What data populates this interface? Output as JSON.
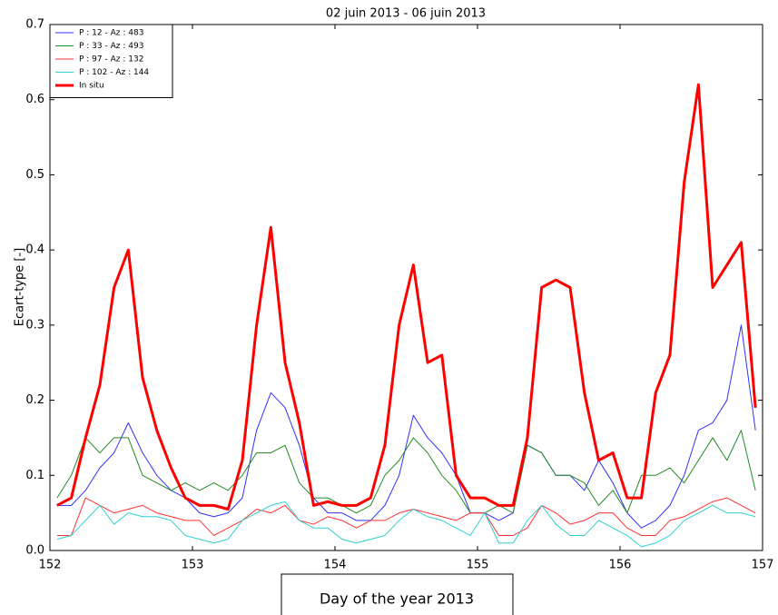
{
  "chart_data": {
    "type": "line",
    "title": "02 juin 2013 - 06 juin 2013",
    "x_label": "Day of the year 2013",
    "y_label": "Ecart-type [-]",
    "x": [
      152.05,
      152.15,
      152.25,
      152.35,
      152.45,
      152.55,
      152.65,
      152.75,
      152.85,
      152.95,
      153.05,
      153.15,
      153.25,
      153.35,
      153.45,
      153.55,
      153.65,
      153.75,
      153.85,
      153.95,
      154.05,
      154.15,
      154.25,
      154.35,
      154.45,
      154.55,
      154.65,
      154.75,
      154.85,
      154.95,
      155.05,
      155.15,
      155.25,
      155.35,
      155.45,
      155.55,
      155.65,
      155.75,
      155.85,
      155.95,
      156.05,
      156.15,
      156.25,
      156.35,
      156.45,
      156.55,
      156.65,
      156.75,
      156.85,
      156.95
    ],
    "xlim": [
      152,
      157
    ],
    "xticks": [
      152,
      153,
      154,
      155,
      156,
      157
    ],
    "ylim": [
      0,
      0.7
    ],
    "yticks": [
      {
        "value": 0,
        "label": "0.0"
      },
      0.1,
      0.2,
      0.3,
      0.4,
      0.5,
      0.6,
      0.7
    ],
    "legend": "upper left",
    "series": [
      {
        "name": "P : 12 - Az : 483",
        "color": "#3030ff",
        "width": 1,
        "values": [
          0.06,
          0.06,
          0.08,
          0.11,
          0.13,
          0.17,
          0.13,
          0.1,
          0.08,
          0.07,
          0.05,
          0.045,
          0.05,
          0.07,
          0.16,
          0.21,
          0.19,
          0.14,
          0.07,
          0.05,
          0.05,
          0.04,
          0.04,
          0.06,
          0.1,
          0.18,
          0.15,
          0.13,
          0.1,
          0.05,
          0.05,
          0.04,
          0.05,
          0.14,
          0.13,
          0.1,
          0.1,
          0.08,
          0.12,
          0.09,
          0.05,
          0.03,
          0.04,
          0.06,
          0.1,
          0.16,
          0.17,
          0.2,
          0.3,
          0.16
        ]
      },
      {
        "name": "P : 33 - Az : 493",
        "color": "#228b22",
        "width": 1,
        "values": [
          0.07,
          0.1,
          0.15,
          0.13,
          0.15,
          0.15,
          0.1,
          0.09,
          0.08,
          0.09,
          0.08,
          0.09,
          0.08,
          0.1,
          0.13,
          0.13,
          0.14,
          0.09,
          0.07,
          0.07,
          0.06,
          0.05,
          0.06,
          0.1,
          0.12,
          0.15,
          0.13,
          0.1,
          0.08,
          0.05,
          0.05,
          0.06,
          0.05,
          0.14,
          0.13,
          0.1,
          0.1,
          0.09,
          0.06,
          0.08,
          0.05,
          0.1,
          0.1,
          0.11,
          0.09,
          0.12,
          0.15,
          0.12,
          0.16,
          0.08
        ]
      },
      {
        "name": "P : 97 - Az : 132",
        "color": "#ff3030",
        "width": 1,
        "values": [
          0.02,
          0.02,
          0.07,
          0.06,
          0.05,
          0.055,
          0.06,
          0.05,
          0.045,
          0.04,
          0.04,
          0.02,
          0.03,
          0.04,
          0.055,
          0.05,
          0.06,
          0.04,
          0.035,
          0.045,
          0.04,
          0.03,
          0.04,
          0.04,
          0.05,
          0.055,
          0.05,
          0.045,
          0.04,
          0.05,
          0.05,
          0.02,
          0.02,
          0.03,
          0.06,
          0.05,
          0.035,
          0.04,
          0.05,
          0.05,
          0.03,
          0.02,
          0.02,
          0.04,
          0.045,
          0.055,
          0.065,
          0.07,
          0.06,
          0.05
        ]
      },
      {
        "name": "P : 102 - Az : 144",
        "color": "#30d0d0",
        "width": 1,
        "values": [
          0.015,
          0.02,
          0.04,
          0.06,
          0.035,
          0.05,
          0.045,
          0.045,
          0.04,
          0.02,
          0.015,
          0.01,
          0.015,
          0.04,
          0.05,
          0.06,
          0.065,
          0.04,
          0.03,
          0.03,
          0.015,
          0.01,
          0.015,
          0.02,
          0.04,
          0.055,
          0.045,
          0.04,
          0.03,
          0.02,
          0.05,
          0.01,
          0.01,
          0.04,
          0.06,
          0.035,
          0.02,
          0.02,
          0.04,
          0.03,
          0.02,
          0.005,
          0.01,
          0.02,
          0.04,
          0.05,
          0.06,
          0.05,
          0.05,
          0.045
        ]
      },
      {
        "name": "In situ",
        "color": "#ff0000",
        "width": 3,
        "values": [
          0.06,
          0.07,
          0.15,
          0.22,
          0.35,
          0.4,
          0.23,
          0.16,
          0.11,
          0.07,
          0.06,
          0.06,
          0.055,
          0.12,
          0.3,
          0.43,
          0.25,
          0.17,
          0.06,
          0.065,
          0.06,
          0.06,
          0.07,
          0.14,
          0.3,
          0.38,
          0.25,
          0.26,
          0.1,
          0.07,
          0.07,
          0.06,
          0.06,
          0.15,
          0.35,
          0.36,
          0.35,
          0.21,
          0.12,
          0.13,
          0.07,
          0.07,
          0.21,
          0.26,
          0.49,
          0.62,
          0.35,
          0.38,
          0.41,
          0.19
        ]
      }
    ]
  }
}
